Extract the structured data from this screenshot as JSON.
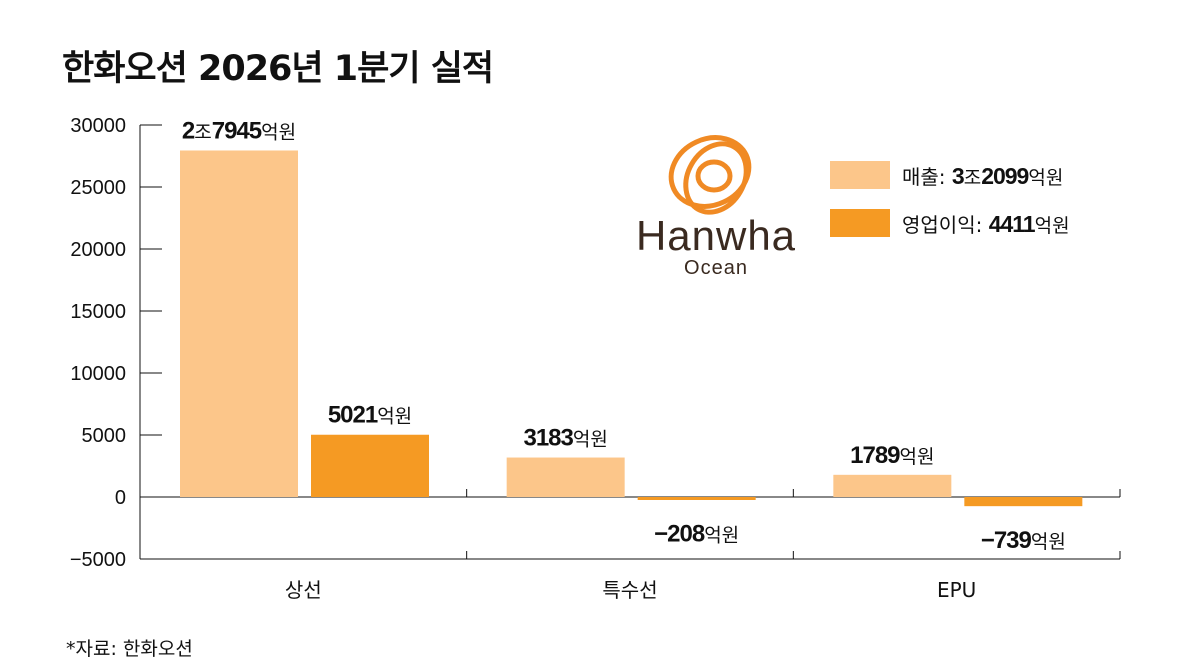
{
  "title": "한화오션 2026년 1분기 실적",
  "source": "*자료: 한화오션",
  "logo": {
    "name": "Hanwha",
    "sub": "Ocean"
  },
  "legend": [
    {
      "label": "매출:",
      "num_a": "3",
      "unit_a": "조",
      "num_b": "2099",
      "unit_b": "억원",
      "color": "#fcc68a"
    },
    {
      "label": "영업이익:",
      "num_a": "4411",
      "unit_a": "억원",
      "num_b": "",
      "unit_b": "",
      "color": "#f59a23"
    }
  ],
  "colors": {
    "revenue": "#fcc68a",
    "profit": "#f59a23",
    "logo": "#f08a24",
    "logo_text": "#3a2a20"
  },
  "chart_data": {
    "type": "bar",
    "categories": [
      "상선",
      "특수선",
      "EPU"
    ],
    "ylim": [
      -5000,
      30000
    ],
    "yticks": [
      "30000",
      "25000",
      "20000",
      "15000",
      "10000",
      "5000",
      "0",
      "−5000"
    ],
    "series": [
      {
        "name": "매출",
        "values": [
          27945,
          3183,
          1789
        ]
      },
      {
        "name": "영업이익",
        "values": [
          5021,
          -208,
          -739
        ]
      }
    ],
    "data_labels": [
      [
        {
          "num_a": "2",
          "unit_a": "조",
          "num_b": "7945",
          "unit_b": "억원"
        },
        {
          "num_a": "3183",
          "unit_a": "억원",
          "num_b": "",
          "unit_b": ""
        },
        {
          "num_a": "1789",
          "unit_a": "억원",
          "num_b": "",
          "unit_b": ""
        }
      ],
      [
        {
          "num_a": "5021",
          "unit_a": "억원",
          "num_b": "",
          "unit_b": ""
        },
        {
          "num_a": "−208",
          "unit_a": "억원",
          "num_b": "",
          "unit_b": ""
        },
        {
          "num_a": "−739",
          "unit_a": "억원",
          "num_b": "",
          "unit_b": ""
        }
      ]
    ]
  }
}
